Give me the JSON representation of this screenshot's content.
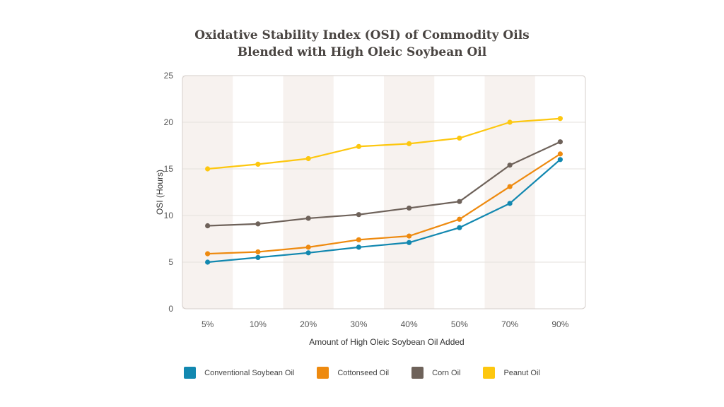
{
  "chart_data": {
    "type": "line",
    "title": [
      "Oxidative Stability Index (OSI) of Commodity Oils",
      "Blended with High Oleic Soybean Oil"
    ],
    "xlabel": "Amount of High Oleic Soybean Oil Added",
    "ylabel": "OSI (Hours)",
    "ylim": [
      0,
      25
    ],
    "yticks": [
      0,
      5,
      10,
      15,
      20,
      25
    ],
    "grid": true,
    "legend_position": "bottom",
    "categories": [
      "5%",
      "10%",
      "20%",
      "30%",
      "40%",
      "50%",
      "70%",
      "90%"
    ],
    "series": [
      {
        "name": "Conventional Soybean Oil",
        "color": "#1288b0",
        "values": [
          5.0,
          5.5,
          6.0,
          6.6,
          7.1,
          8.7,
          11.3,
          16.0
        ]
      },
      {
        "name": "Cottonseed Oil",
        "color": "#ee8a0f",
        "values": [
          5.9,
          6.1,
          6.6,
          7.4,
          7.8,
          9.6,
          13.1,
          16.6
        ]
      },
      {
        "name": "Corn Oil",
        "color": "#6e625a",
        "values": [
          8.9,
          9.1,
          9.7,
          10.1,
          10.8,
          11.5,
          15.4,
          17.9
        ]
      },
      {
        "name": "Peanut Oil",
        "color": "#fdc70f",
        "values": [
          15.0,
          15.5,
          16.1,
          17.4,
          17.7,
          18.3,
          20.0,
          20.4
        ]
      }
    ]
  }
}
